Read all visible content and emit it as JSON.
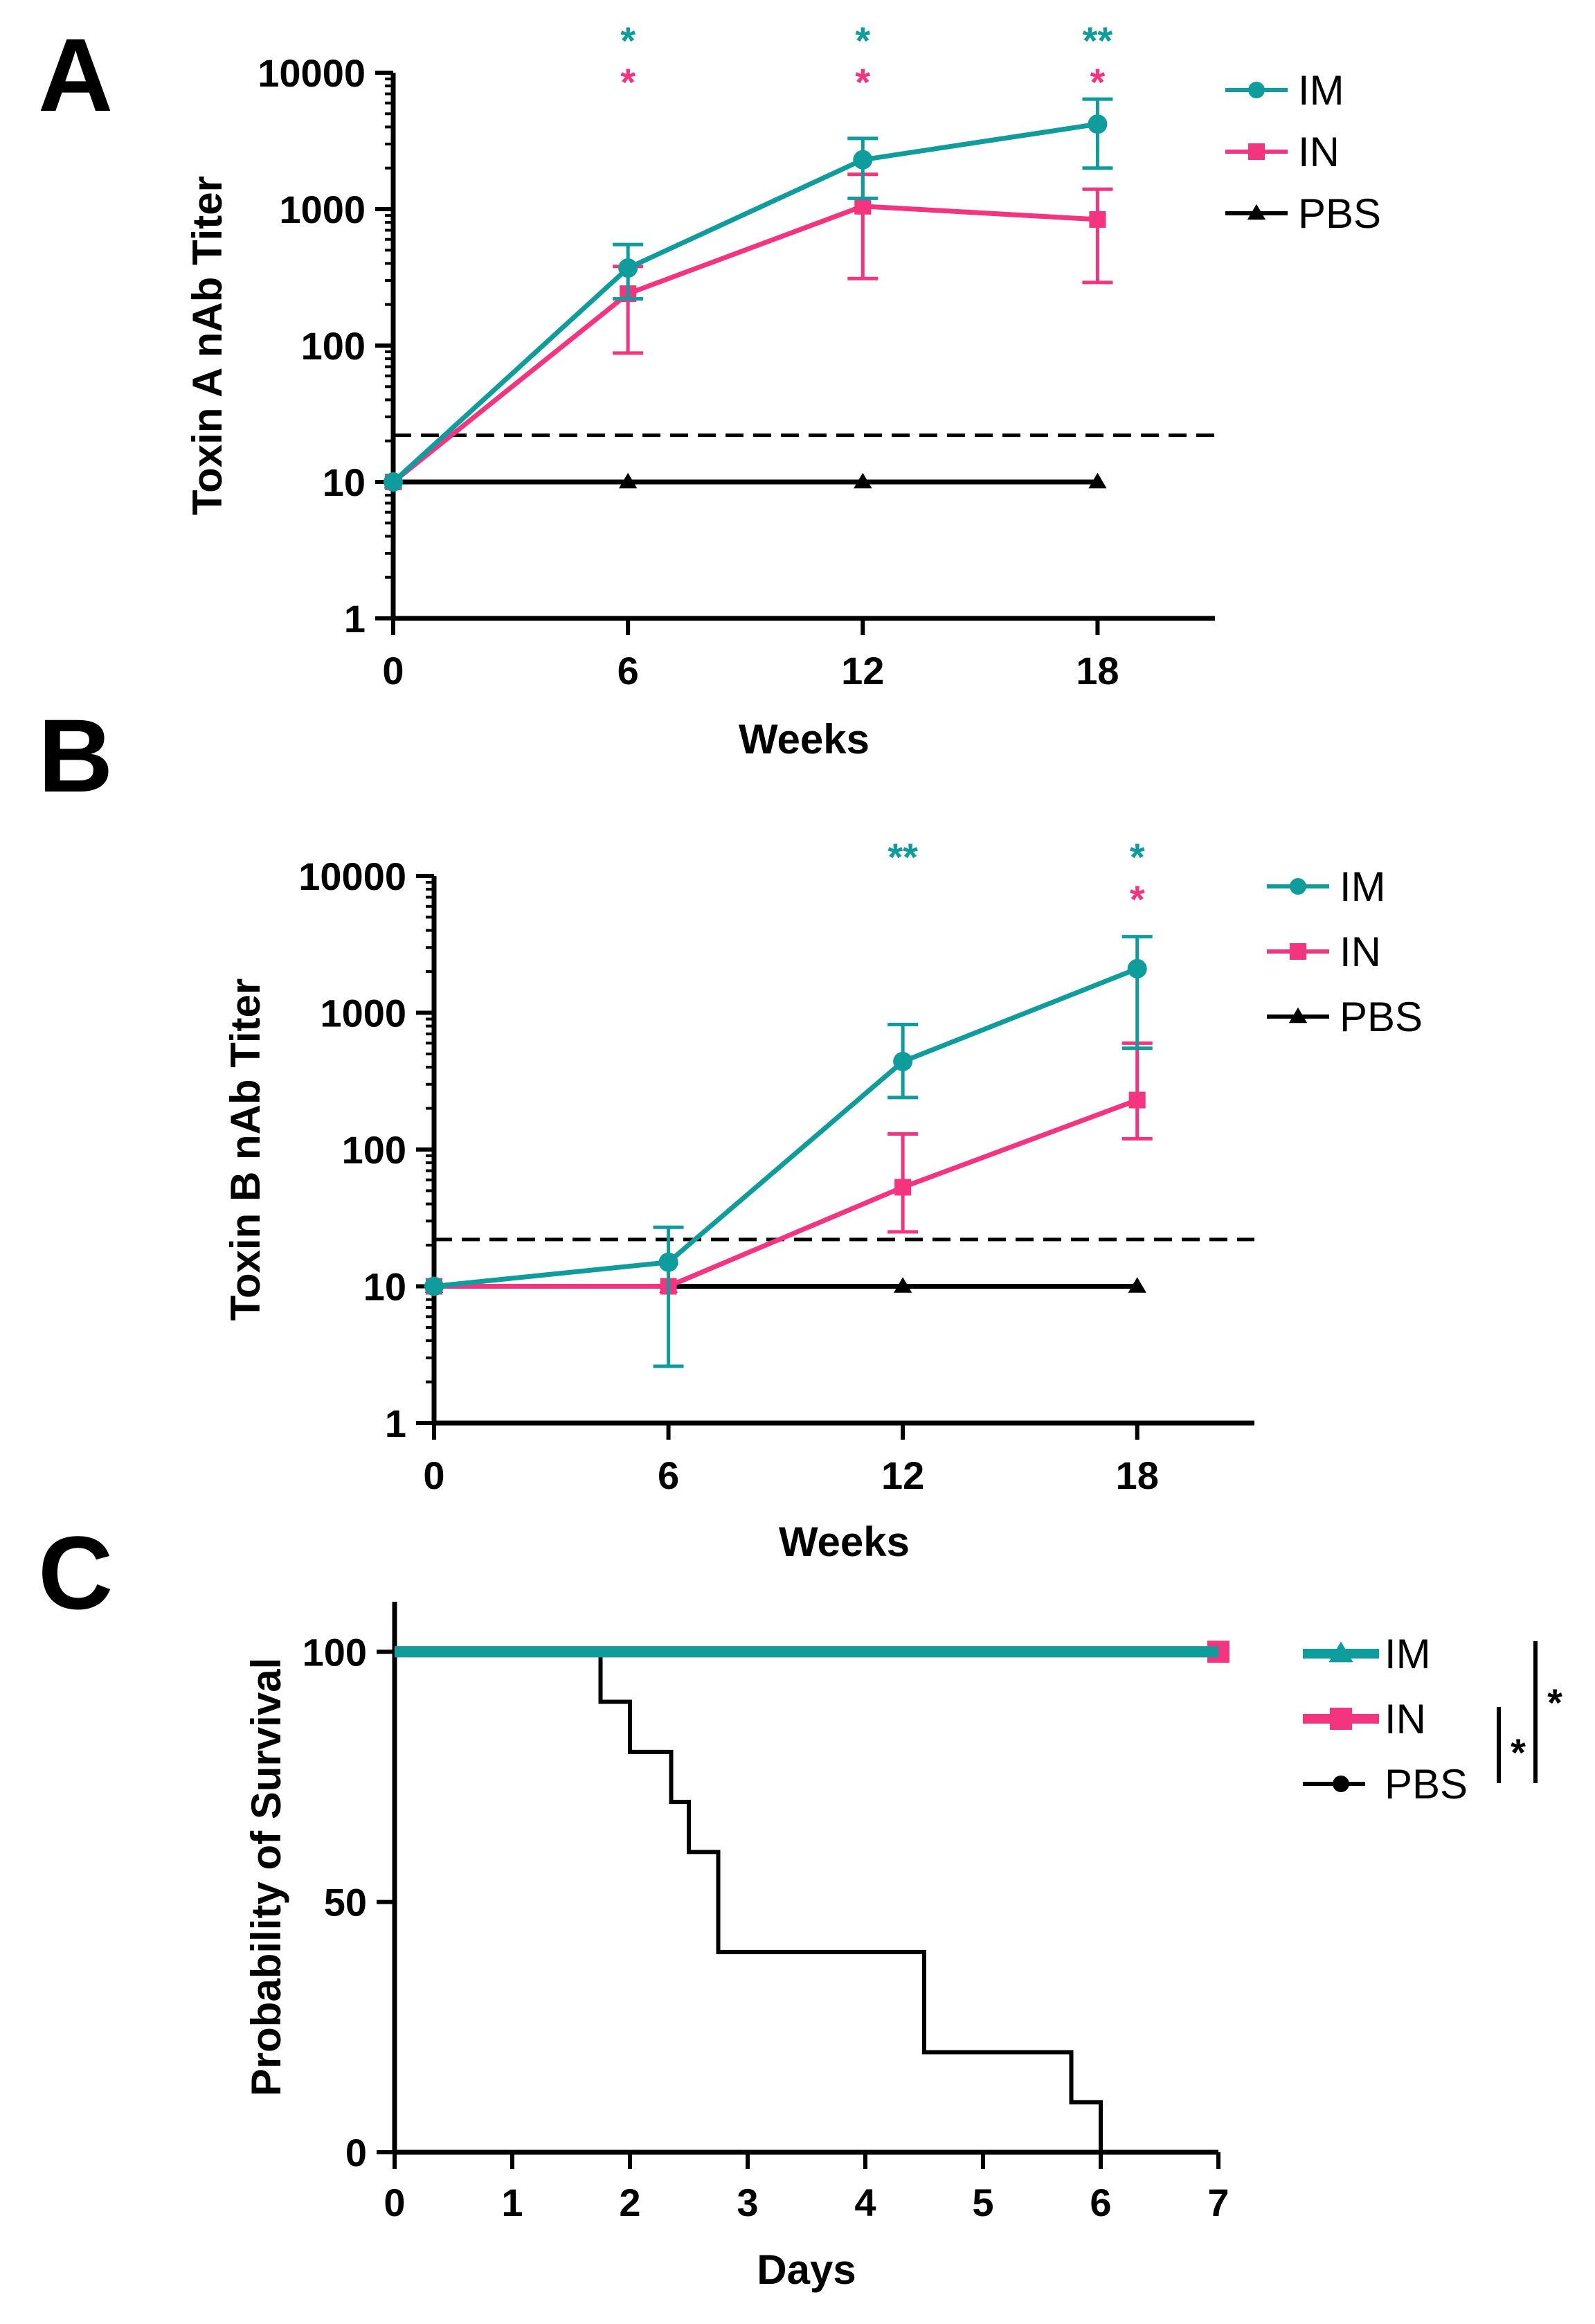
{
  "colors": {
    "IM": "#0e9c9c",
    "IN": "#f4347e",
    "PBS": "#000000"
  },
  "chart_data": [
    {
      "panel": "A",
      "type": "line",
      "yscale": "log",
      "title": "",
      "xlabel": "Weeks",
      "ylabel": "Toxin A nAb Titer",
      "xlim": [
        0,
        21
      ],
      "ylim": [
        1,
        10000
      ],
      "xticks": [
        0,
        6,
        12,
        18
      ],
      "xtick_labels": [
        "0",
        "6",
        "12",
        "18"
      ],
      "yticks": [
        1,
        10,
        100,
        1000,
        10000
      ],
      "ytick_labels": [
        "1",
        "10",
        "100",
        "1000",
        "10000"
      ],
      "threshold": 22,
      "series": [
        {
          "name": "IM",
          "color_key": "IM",
          "marker": "circle",
          "x": [
            0,
            6,
            12,
            18
          ],
          "y": [
            10,
            370,
            2300,
            4200
          ],
          "err_low": [
            10,
            220,
            1200,
            2000
          ],
          "err_high": [
            10,
            550,
            3300,
            6400
          ]
        },
        {
          "name": "IN",
          "color_key": "IN",
          "marker": "square",
          "x": [
            0,
            6,
            12,
            18
          ],
          "y": [
            10,
            240,
            1050,
            840
          ],
          "err_low": [
            10,
            88,
            310,
            290
          ],
          "err_high": [
            10,
            380,
            1800,
            1400
          ]
        },
        {
          "name": "PBS",
          "color_key": "PBS",
          "marker": "triangle",
          "x": [
            0,
            6,
            12,
            18
          ],
          "y": [
            10,
            10,
            10,
            10
          ],
          "err_low": [
            10,
            10,
            10,
            10
          ],
          "err_high": [
            10,
            10,
            10,
            10
          ]
        }
      ],
      "legend": [
        "IM",
        "IN",
        "PBS"
      ],
      "annotations": [
        {
          "x": 6,
          "row": 0,
          "text": "*",
          "color_key": "IM"
        },
        {
          "x": 6,
          "row": 1,
          "text": "*",
          "color_key": "IN"
        },
        {
          "x": 12,
          "row": 0,
          "text": "*",
          "color_key": "IM"
        },
        {
          "x": 12,
          "row": 1,
          "text": "*",
          "color_key": "IN"
        },
        {
          "x": 18,
          "row": 0,
          "text": "**",
          "color_key": "IM"
        },
        {
          "x": 18,
          "row": 1,
          "text": "*",
          "color_key": "IN"
        }
      ]
    },
    {
      "panel": "B",
      "type": "line",
      "yscale": "log",
      "title": "",
      "xlabel": "Weeks",
      "ylabel": "Toxin B nAb Titer",
      "xlim": [
        0,
        21
      ],
      "ylim": [
        1,
        10000
      ],
      "xticks": [
        0,
        6,
        12,
        18
      ],
      "xtick_labels": [
        "0",
        "6",
        "12",
        "18"
      ],
      "yticks": [
        1,
        10,
        100,
        1000,
        10000
      ],
      "ytick_labels": [
        "1",
        "10",
        "100",
        "1000",
        "10000"
      ],
      "threshold": 22,
      "series": [
        {
          "name": "IM",
          "color_key": "IM",
          "marker": "circle",
          "x": [
            0,
            6,
            12,
            18
          ],
          "y": [
            10,
            15,
            440,
            2100
          ],
          "err_low": [
            10,
            2.6,
            240,
            550
          ],
          "err_high": [
            10,
            27,
            820,
            3600
          ]
        },
        {
          "name": "IN",
          "color_key": "IN",
          "marker": "square",
          "x": [
            0,
            6,
            12,
            18
          ],
          "y": [
            10,
            10,
            53,
            230
          ],
          "err_low": [
            10,
            10,
            25,
            120
          ],
          "err_high": [
            10,
            10,
            130,
            600
          ]
        },
        {
          "name": "PBS",
          "color_key": "PBS",
          "marker": "triangle",
          "x": [
            0,
            6,
            12,
            18
          ],
          "y": [
            10,
            10,
            10,
            10
          ],
          "err_low": [
            10,
            10,
            10,
            10
          ],
          "err_high": [
            10,
            10,
            10,
            10
          ]
        }
      ],
      "legend": [
        "IM",
        "IN",
        "PBS"
      ],
      "annotations": [
        {
          "x": 12,
          "row": 0,
          "text": "**",
          "color_key": "IM"
        },
        {
          "x": 18,
          "row": 0,
          "text": "*",
          "color_key": "IM"
        },
        {
          "x": 18,
          "row": 1,
          "text": "*",
          "color_key": "IN"
        }
      ]
    },
    {
      "panel": "C",
      "type": "step",
      "yscale": "linear",
      "title": "",
      "xlabel": "Days",
      "ylabel": "Probability of Survival",
      "xlim": [
        0,
        7
      ],
      "ylim": [
        0,
        110
      ],
      "xticks": [
        0,
        1,
        2,
        3,
        4,
        5,
        6,
        7
      ],
      "xtick_labels": [
        "0",
        "1",
        "2",
        "3",
        "4",
        "5",
        "6",
        "7"
      ],
      "yticks": [
        0,
        50,
        100
      ],
      "ytick_labels": [
        "0",
        "50",
        "100"
      ],
      "series": [
        {
          "name": "IM",
          "color_key": "IM",
          "marker": "triangle",
          "x": [
            0,
            7
          ],
          "y": [
            100,
            100
          ]
        },
        {
          "name": "IN",
          "color_key": "IN",
          "marker": "square",
          "x": [
            0,
            7
          ],
          "y": [
            100,
            100
          ]
        },
        {
          "name": "PBS",
          "color_key": "PBS",
          "marker": "circle",
          "x": [
            0,
            1.75,
            1.75,
            2.0,
            2.0,
            2.35,
            2.35,
            2.5,
            2.5,
            2.75,
            2.75,
            4.5,
            4.5,
            5.75,
            5.75,
            6.0,
            6.0
          ],
          "y": [
            100,
            100,
            90,
            90,
            80,
            80,
            70,
            70,
            60,
            60,
            40,
            40,
            20,
            20,
            10,
            10,
            0
          ]
        }
      ],
      "legend": [
        "IM",
        "IN",
        "PBS"
      ],
      "annotations": [
        {
          "text": "*",
          "bracket": "inner"
        },
        {
          "text": "*",
          "bracket": "outer"
        }
      ]
    }
  ]
}
